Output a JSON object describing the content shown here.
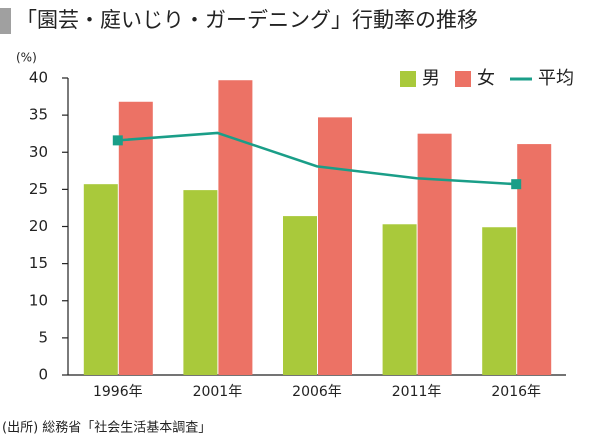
{
  "chart_data": {
    "type": "bar",
    "title": "「園芸・庭いじり・ガーデニング」行動率の推移",
    "y_label": "(%)",
    "source": "(出所) 総務省「社会生活基本調査」",
    "categories": [
      "1996年",
      "2001年",
      "2006年",
      "2011年",
      "2016年"
    ],
    "series": [
      {
        "name": "男",
        "type": "bar",
        "color": "#a9c93b",
        "values": [
          25.7,
          24.9,
          21.4,
          20.3,
          19.9
        ]
      },
      {
        "name": "女",
        "type": "bar",
        "color": "#ec7265",
        "values": [
          36.8,
          39.7,
          34.7,
          32.5,
          31.1
        ]
      },
      {
        "name": "平均",
        "type": "line",
        "color": "#1a9e88",
        "values": [
          31.6,
          32.6,
          28.1,
          26.5,
          25.7
        ]
      }
    ],
    "ylim": [
      0,
      40
    ],
    "yticks": [
      0,
      5,
      10,
      15,
      20,
      25,
      30,
      35,
      40
    ],
    "grid": false,
    "legend": "top-right"
  }
}
